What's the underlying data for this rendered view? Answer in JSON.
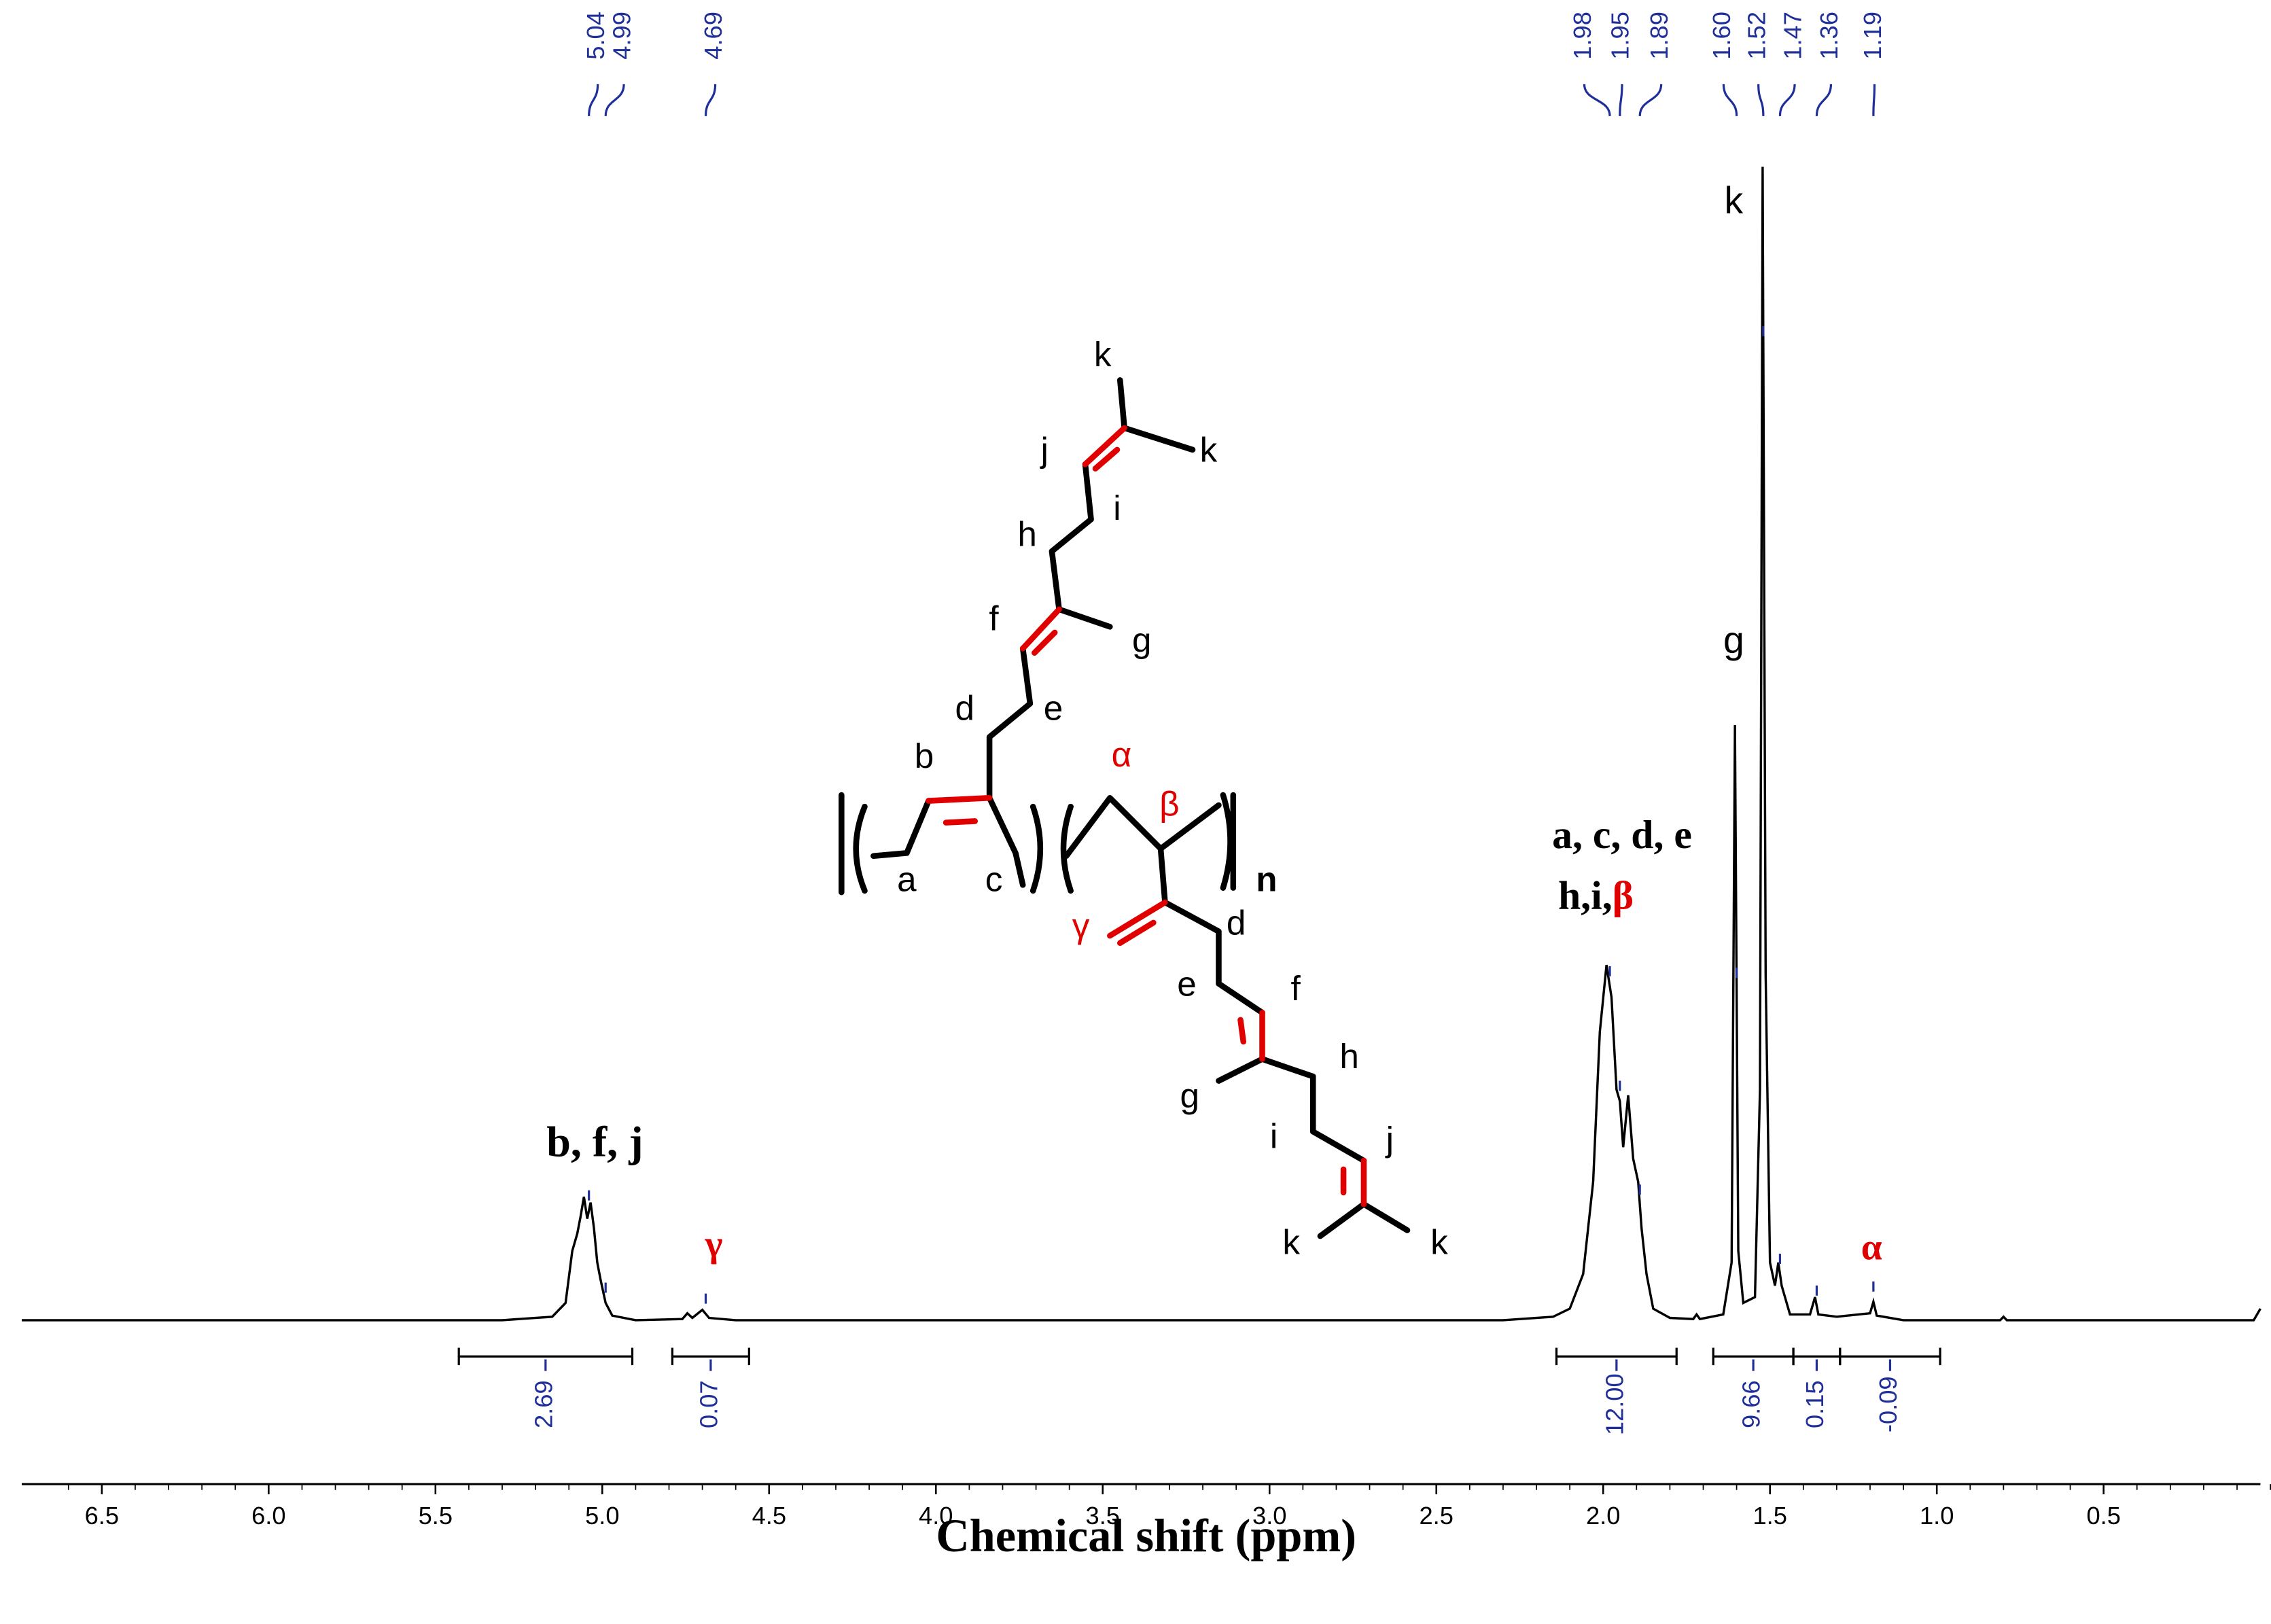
{
  "chart_data": {
    "type": "line",
    "x_label": "Chemical shift (ppm)",
    "xlim": [
      6.74,
      0.03
    ],
    "ylim": [
      0,
      100
    ],
    "xticks": [
      6.5,
      {
        "value": 6,
        "label": "6.0"
      },
      5.5,
      {
        "value": 5,
        "label": "5.0"
      },
      4.5,
      {
        "value": 4,
        "label": "4.0"
      },
      3.5,
      {
        "value": 3,
        "label": "3.0"
      },
      2.5,
      {
        "value": 2,
        "label": "2.0"
      },
      1.5,
      {
        "value": 1,
        "label": "1.0"
      },
      0.5
    ],
    "x": [
      6.74,
      5.3,
      5.15,
      5.11,
      5.09,
      5.075,
      5.065,
      5.055,
      5.045,
      5.035,
      5.025,
      5.015,
      5.005,
      4.99,
      4.97,
      4.9,
      4.76,
      4.745,
      4.73,
      4.7,
      4.68,
      4.6,
      2.3,
      2.15,
      2.1,
      2.06,
      2.03,
      2.01,
      1.99,
      1.975,
      1.96,
      1.95,
      1.94,
      1.925,
      1.91,
      1.895,
      1.885,
      1.87,
      1.85,
      1.8,
      1.73,
      1.72,
      1.71,
      1.64,
      1.615,
      1.605,
      1.595,
      1.58,
      1.545,
      1.53,
      1.522,
      1.513,
      1.5,
      1.485,
      1.475,
      1.465,
      1.44,
      1.38,
      1.365,
      1.355,
      1.3,
      1.2,
      1.19,
      1.18,
      1.1,
      0.81,
      0.8,
      0.79,
      0.05,
      0.03
    ],
    "series": [
      {
        "color": "#000000",
        "values": [
          0,
          0,
          0.3,
          1.5,
          6,
          7.5,
          9,
          10.7,
          8.8,
          10.2,
          8,
          5,
          3.5,
          1.5,
          0.4,
          0,
          0.1,
          0.6,
          0.2,
          0.9,
          0.2,
          0,
          0,
          0.3,
          1,
          4,
          12,
          25,
          30.8,
          28,
          20,
          19,
          15,
          19.5,
          14,
          12,
          8,
          4,
          1,
          0.2,
          0.1,
          0.5,
          0.1,
          0.5,
          5,
          51.6,
          6,
          1.5,
          2,
          20,
          100,
          30,
          5,
          3,
          5,
          3,
          0.5,
          0.5,
          2,
          0.5,
          0.3,
          0.6,
          1.6,
          0.4,
          0,
          0,
          0.3,
          0,
          0,
          1
        ]
      }
    ],
    "label_color": "#1f2f9a",
    "peaks": [
      {
        "value": 5.04,
        "label": "5.04"
      },
      {
        "value": 4.99,
        "label": "4.99"
      },
      {
        "value": 4.69,
        "label": "4.69"
      },
      {
        "value": 1.98,
        "label": "1.98"
      },
      {
        "value": 1.95,
        "label": "1.95"
      },
      {
        "value": 1.89,
        "label": "1.89"
      },
      {
        "value": 1.6,
        "label": "1.60"
      },
      {
        "value": 1.52,
        "label": "1.52"
      },
      {
        "value": 1.47,
        "label": "1.47"
      },
      {
        "value": 1.36,
        "label": "1.36"
      },
      {
        "value": 1.19,
        "label": "1.19"
      }
    ],
    "integrals": [
      {
        "from": 5.43,
        "to": 4.91,
        "value": 2.69
      },
      {
        "from": 4.79,
        "to": 4.56,
        "value": 0.07
      },
      {
        "from": 2.14,
        "to": 1.78,
        "value": 12,
        "label": "12.00"
      },
      {
        "from": 1.67,
        "to": 1.43,
        "value": 9.66
      },
      {
        "from": 1.43,
        "to": 1.29,
        "value": 0.15
      },
      {
        "from": 1.29,
        "to": 0.99,
        "value": -0.09
      }
    ],
    "annotations": [
      {
        "parts": [
          {
            "text": "b, f, j"
          }
        ]
      },
      {
        "parts": [
          {
            "text": "γ",
            "color": "#e00000"
          }
        ]
      },
      {
        "parts": [
          {
            "text": "a, c, d, e"
          }
        ]
      },
      {
        "parts": [
          {
            "text": "h,i,"
          },
          {
            "text": "β",
            "color": "#e00000"
          }
        ]
      },
      {
        "parts": [
          {
            "text": "k"
          }
        ]
      },
      {
        "parts": [
          {
            "text": "g"
          }
        ]
      },
      {
        "parts": [
          {
            "text": "α",
            "color": "#e00000"
          }
        ]
      }
    ],
    "structure_labels": [
      {
        "text": "k"
      },
      {
        "text": "k"
      },
      {
        "text": "j"
      },
      {
        "text": "i"
      },
      {
        "text": "h"
      },
      {
        "text": "g"
      },
      {
        "text": "f"
      },
      {
        "text": "d"
      },
      {
        "text": "e"
      },
      {
        "text": "b"
      },
      {
        "text": "α",
        "color": "#e00000"
      },
      {
        "text": "β",
        "color": "#e00000"
      },
      {
        "text": "a"
      },
      {
        "text": "c"
      },
      {
        "text": "n"
      },
      {
        "text": "γ",
        "color": "#e00000"
      },
      {
        "text": "d"
      },
      {
        "text": "e"
      },
      {
        "text": "f"
      },
      {
        "text": "h"
      },
      {
        "text": "g"
      },
      {
        "text": "i"
      },
      {
        "text": "j"
      },
      {
        "text": "k"
      },
      {
        "text": "k"
      }
    ]
  }
}
